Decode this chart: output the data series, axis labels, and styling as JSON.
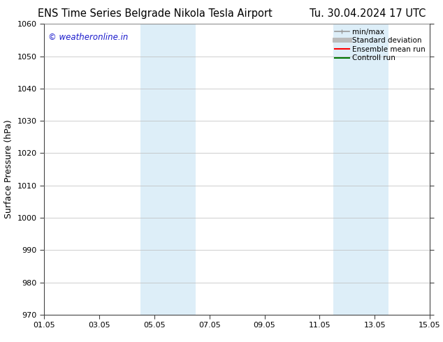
{
  "title_left": "ENS Time Series Belgrade Nikola Tesla Airport",
  "title_right": "Tu. 30.04.2024 17 UTC",
  "ylabel": "Surface Pressure (hPa)",
  "ylim": [
    970,
    1060
  ],
  "yticks": [
    970,
    980,
    990,
    1000,
    1010,
    1020,
    1030,
    1040,
    1050,
    1060
  ],
  "xlim_start": 0,
  "xlim_end": 14,
  "xtick_labels": [
    "01.05",
    "03.05",
    "05.05",
    "07.05",
    "09.05",
    "11.05",
    "13.05",
    "15.05"
  ],
  "xtick_positions": [
    0,
    2,
    4,
    6,
    8,
    10,
    12,
    14
  ],
  "shaded_bands": [
    {
      "x_start": 3.5,
      "x_end": 5.5
    },
    {
      "x_start": 10.5,
      "x_end": 12.5
    }
  ],
  "shaded_color": "#ddeef8",
  "watermark_text": "© weatheronline.in",
  "watermark_color": "#1a1acc",
  "background_color": "#ffffff",
  "grid_color": "#bbbbbb",
  "spine_color": "#444444",
  "legend_entries": [
    {
      "label": "min/max",
      "color": "#999999",
      "lw": 1.2,
      "style": "minmax"
    },
    {
      "label": "Standard deviation",
      "color": "#bbbbbb",
      "lw": 5,
      "style": "line"
    },
    {
      "label": "Ensemble mean run",
      "color": "#ff0000",
      "lw": 1.5,
      "style": "line"
    },
    {
      "label": "Controll run",
      "color": "#007700",
      "lw": 1.5,
      "style": "line"
    }
  ],
  "title_fontsize": 10.5,
  "ylabel_fontsize": 9,
  "tick_fontsize": 8,
  "watermark_fontsize": 8.5,
  "legend_fontsize": 7.5
}
